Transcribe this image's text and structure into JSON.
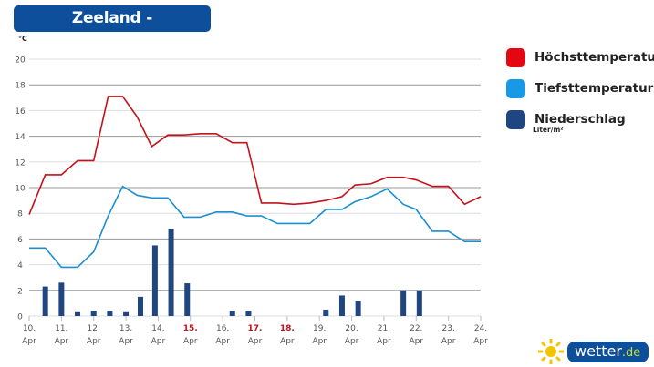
{
  "header": {
    "title": "Zeeland - Urlaubstrend",
    "unit": "°C"
  },
  "legend": {
    "items": [
      {
        "label": "Höchsttemperatur",
        "color": "#e30613"
      },
      {
        "label": "Tiefsttemperatur",
        "color": "#1899e6"
      },
      {
        "label": "Niederschlag",
        "color": "#1f4680"
      }
    ],
    "precip_unit": "Liter/m²"
  },
  "logo": {
    "main": "wetter",
    "suffix": ".de"
  },
  "chart_data": {
    "type": "line",
    "title": "Zeeland - Urlaubstrend",
    "ylabel": "°C",
    "ylim": [
      0,
      20
    ],
    "yticks": [
      0,
      2,
      4,
      6,
      8,
      10,
      12,
      14,
      16,
      18,
      20
    ],
    "grid": true,
    "legend_position": "right",
    "x_days": [
      {
        "day": "10.",
        "month": "Apr",
        "holiday": false
      },
      {
        "day": "11.",
        "month": "Apr",
        "holiday": false
      },
      {
        "day": "12.",
        "month": "Apr",
        "holiday": false
      },
      {
        "day": "13.",
        "month": "Apr",
        "holiday": false
      },
      {
        "day": "14.",
        "month": "Apr",
        "holiday": false
      },
      {
        "day": "15.",
        "month": "Apr",
        "holiday": true
      },
      {
        "day": "16.",
        "month": "Apr",
        "holiday": false
      },
      {
        "day": "17.",
        "month": "Apr",
        "holiday": true
      },
      {
        "day": "18.",
        "month": "Apr",
        "holiday": true
      },
      {
        "day": "19.",
        "month": "Apr",
        "holiday": false
      },
      {
        "day": "20.",
        "month": "Apr",
        "holiday": false
      },
      {
        "day": "21.",
        "month": "Apr",
        "holiday": false
      },
      {
        "day": "22.",
        "month": "Apr",
        "holiday": false
      },
      {
        "day": "23.",
        "month": "Apr",
        "holiday": false
      },
      {
        "day": "24.",
        "month": "Apr",
        "holiday": false
      }
    ],
    "series": [
      {
        "name": "Höchsttemperatur",
        "type": "line",
        "color": "#c4121a",
        "points": [
          [
            0,
            7.9
          ],
          [
            0.5,
            11
          ],
          [
            1,
            11
          ],
          [
            1.5,
            12.1
          ],
          [
            2,
            12.1
          ],
          [
            2.45,
            17.1
          ],
          [
            2.9,
            17.1
          ],
          [
            3.35,
            15.5
          ],
          [
            3.8,
            13.2
          ],
          [
            4.3,
            14.1
          ],
          [
            4.8,
            14.1
          ],
          [
            5.3,
            14.2
          ],
          [
            5.8,
            14.2
          ],
          [
            6.3,
            13.5
          ],
          [
            6.75,
            13.5
          ],
          [
            7.2,
            8.8
          ],
          [
            7.7,
            8.8
          ],
          [
            8.2,
            8.7
          ],
          [
            8.7,
            8.8
          ],
          [
            9.2,
            9.0
          ],
          [
            9.7,
            9.3
          ],
          [
            10.1,
            10.2
          ],
          [
            10.6,
            10.3
          ],
          [
            11.1,
            10.8
          ],
          [
            11.6,
            10.8
          ],
          [
            12.0,
            10.6
          ],
          [
            12.5,
            10.1
          ],
          [
            13.0,
            10.1
          ],
          [
            13.5,
            8.7
          ],
          [
            14,
            9.3
          ]
        ]
      },
      {
        "name": "Tiefsttemperatur",
        "type": "line",
        "color": "#1b8fd0",
        "points": [
          [
            0,
            5.3
          ],
          [
            0.5,
            5.3
          ],
          [
            1,
            3.8
          ],
          [
            1.5,
            3.8
          ],
          [
            2,
            5.0
          ],
          [
            2.45,
            7.8
          ],
          [
            2.9,
            10.1
          ],
          [
            3.35,
            9.4
          ],
          [
            3.8,
            9.2
          ],
          [
            4.3,
            9.2
          ],
          [
            4.8,
            7.7
          ],
          [
            5.3,
            7.7
          ],
          [
            5.8,
            8.1
          ],
          [
            6.3,
            8.1
          ],
          [
            6.75,
            7.8
          ],
          [
            7.2,
            7.8
          ],
          [
            7.7,
            7.2
          ],
          [
            8.2,
            7.2
          ],
          [
            8.7,
            7.2
          ],
          [
            9.2,
            8.3
          ],
          [
            9.7,
            8.3
          ],
          [
            10.1,
            8.9
          ],
          [
            10.6,
            9.3
          ],
          [
            11.1,
            9.9
          ],
          [
            11.6,
            8.7
          ],
          [
            12.0,
            8.3
          ],
          [
            12.5,
            6.6
          ],
          [
            13.0,
            6.6
          ],
          [
            13.5,
            5.8
          ],
          [
            14,
            5.8
          ]
        ]
      },
      {
        "name": "Niederschlag",
        "type": "bar",
        "unit": "Liter/m²",
        "color": "#1f4680",
        "points": [
          [
            0.5,
            2.3
          ],
          [
            1.0,
            2.6
          ],
          [
            1.5,
            0.3
          ],
          [
            2.0,
            0.4
          ],
          [
            2.5,
            0.4
          ],
          [
            3.0,
            0.3
          ],
          [
            3.45,
            1.5
          ],
          [
            3.9,
            5.5
          ],
          [
            4.4,
            6.8
          ],
          [
            4.9,
            2.55
          ],
          [
            6.3,
            0.4
          ],
          [
            6.8,
            0.4
          ],
          [
            9.2,
            0.5
          ],
          [
            9.7,
            1.6
          ],
          [
            10.2,
            1.15
          ],
          [
            11.6,
            2.0
          ],
          [
            12.1,
            2.0
          ]
        ]
      }
    ]
  }
}
